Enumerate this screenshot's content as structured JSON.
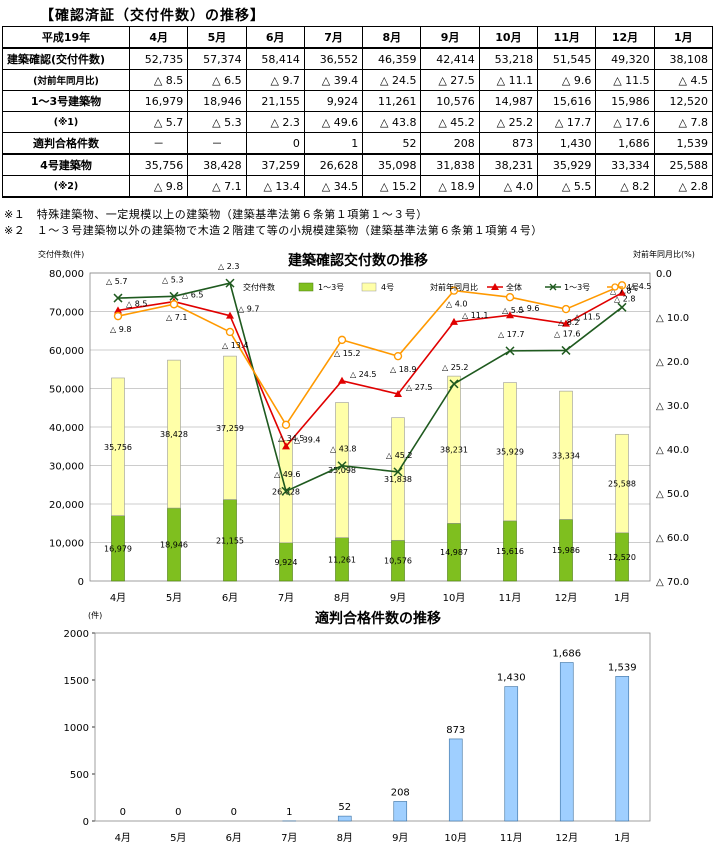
{
  "heading": "【確認済証（交付件数）の推移】",
  "table": {
    "corner": "平成19年",
    "months": [
      "4月",
      "5月",
      "6月",
      "7月",
      "8月",
      "9月",
      "10月",
      "11月",
      "12月",
      "1月"
    ],
    "rows": [
      {
        "label": "建築確認(交付件数)",
        "values": [
          "52,735",
          "57,374",
          "58,414",
          "36,552",
          "46,359",
          "42,414",
          "53,218",
          "51,545",
          "49,320",
          "38,108"
        ]
      },
      {
        "label": "(対前年同月比)",
        "values": [
          "△ 8.5",
          "△ 6.5",
          "△ 9.7",
          "△ 39.4",
          "△ 24.5",
          "△ 27.5",
          "△ 11.1",
          "△ 9.6",
          "△ 11.5",
          "△ 4.5"
        ]
      },
      {
        "label": "1～3号建築物",
        "values": [
          "16,979",
          "18,946",
          "21,155",
          "9,924",
          "11,261",
          "10,576",
          "14,987",
          "15,616",
          "15,986",
          "12,520"
        ]
      },
      {
        "label": "(※1)",
        "values": [
          "△ 5.7",
          "△ 5.3",
          "△ 2.3",
          "△ 49.6",
          "△ 43.8",
          "△ 45.2",
          "△ 25.2",
          "△ 17.7",
          "△ 17.6",
          "△ 7.8"
        ]
      },
      {
        "label": "適判合格件数",
        "values": [
          "－",
          "－",
          "0",
          "1",
          "52",
          "208",
          "873",
          "1,430",
          "1,686",
          "1,539"
        ]
      },
      {
        "label": "4号建築物",
        "values": [
          "35,756",
          "38,428",
          "37,259",
          "26,628",
          "35,098",
          "31,838",
          "38,231",
          "35,929",
          "33,334",
          "25,588"
        ]
      },
      {
        "label": "(※2)",
        "values": [
          "△ 9.8",
          "△ 7.1",
          "△ 13.4",
          "△ 34.5",
          "△ 15.2",
          "△ 18.9",
          "△ 4.0",
          "△ 5.5",
          "△ 8.2",
          "△ 2.8"
        ]
      }
    ]
  },
  "notes": [
    "※１　特殊建築物、一定規模以上の建築物（建築基準法第６条第１項第１～３号）",
    "※２　１～３号建築物以外の建築物で木造２階建て等の小規模建築物（建築基準法第６条第１項第４号）"
  ],
  "colors": {
    "bar13": "#7fbf1f",
    "bar4": "#ffffa8",
    "line_total": "#e00000",
    "line_13": "#1f5a1f",
    "line_4": "#ff9900",
    "bar_pass": "#9fcfff"
  },
  "chart_data": [
    {
      "type": "bar",
      "title": "建築確認交付数の推移",
      "ylabel": "交付件数(件)",
      "y2label": "対前年同月比(%)",
      "categories": [
        "4月",
        "5月",
        "6月",
        "7月",
        "8月",
        "9月",
        "10月",
        "11月",
        "12月",
        "1月"
      ],
      "ylim": [
        0,
        80000
      ],
      "y2lim": [
        0,
        70
      ],
      "y2_inverted": true,
      "yticks": [
        "0",
        "10,000",
        "20,000",
        "30,000",
        "40,000",
        "50,000",
        "60,000",
        "70,000",
        "80,000"
      ],
      "y2ticks": [
        "0.0",
        "△ 10.0",
        "△ 20.0",
        "△ 30.0",
        "△ 40.0",
        "△ 50.0",
        "△ 60.0",
        "△ 70.0"
      ],
      "legend_bar_title": "交付件数",
      "legend_line_title": "対前年同月比",
      "stacked_series": [
        {
          "name": "1～3号",
          "values": [
            16979,
            18946,
            21155,
            9924,
            11261,
            10576,
            14987,
            15616,
            15986,
            12520
          ],
          "labels": [
            "16,979",
            "18,946",
            "21,155",
            "9,924",
            "11,261",
            "10,576",
            "14,987",
            "15,616",
            "15,986",
            "12,520"
          ]
        },
        {
          "name": "4号",
          "values": [
            35756,
            38428,
            37259,
            26628,
            35098,
            31838,
            38231,
            35929,
            33334,
            25588
          ],
          "labels": [
            "35,756",
            "38,428",
            "37,259",
            "26,628",
            "35,098",
            "31,838",
            "38,231",
            "35,929",
            "33,334",
            "25,588"
          ]
        }
      ],
      "line_series": [
        {
          "name": "全体",
          "values": [
            -8.5,
            -6.5,
            -9.7,
            -39.4,
            -24.5,
            -27.5,
            -11.1,
            -9.6,
            -11.5,
            -4.5
          ],
          "labels": [
            "△ 8.5",
            "△ 6.5",
            "△ 9.7",
            "△ 39.4",
            "△ 24.5",
            "△ 27.5",
            "△ 11.1",
            "△ 9.6",
            "△ 11.5",
            "△ 4.5"
          ]
        },
        {
          "name": "1～3号",
          "values": [
            -5.7,
            -5.3,
            -2.3,
            -49.6,
            -43.8,
            -45.2,
            -25.2,
            -17.7,
            -17.6,
            -7.8
          ],
          "labels": [
            "△ 5.7",
            "△ 5.3",
            "△ 2.3",
            "△ 49.6",
            "△ 43.8",
            "△ 45.2",
            "△ 25.2",
            "△ 17.7",
            "△ 17.6",
            "△ 7.8"
          ]
        },
        {
          "name": "4号",
          "values": [
            -9.8,
            -7.1,
            -13.4,
            -34.5,
            -15.2,
            -18.9,
            -4.0,
            -5.5,
            -8.2,
            -2.8
          ],
          "labels": [
            "△ 9.8",
            "△ 7.1",
            "△ 13.4",
            "△ 34.5",
            "△ 15.2",
            "△ 18.9",
            "△ 4.0",
            "△ 5.5",
            "△ 8.2",
            "△ 2.8"
          ]
        }
      ]
    },
    {
      "type": "bar",
      "title": "適判合格件数の推移",
      "ylabel": "(件)",
      "categories": [
        "4月",
        "5月",
        "6月",
        "7月",
        "8月",
        "9月",
        "10月",
        "11月",
        "12月",
        "1月"
      ],
      "values": [
        0,
        0,
        0,
        1,
        52,
        208,
        873,
        1430,
        1686,
        1539
      ],
      "labels": [
        "0",
        "0",
        "0",
        "1",
        "52",
        "208",
        "873",
        "1,430",
        "1,686",
        "1,539"
      ],
      "ylim": [
        0,
        2000
      ],
      "yticks": [
        "0",
        "500",
        "1000",
        "1500",
        "2000"
      ]
    }
  ]
}
